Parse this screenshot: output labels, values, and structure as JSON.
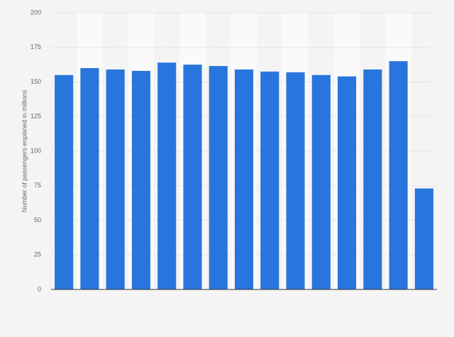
{
  "chart_data": {
    "type": "bar",
    "y_label": "Number of passengers enplaned in millions",
    "categories": [
      null,
      null,
      null,
      null,
      null,
      null,
      null,
      null,
      null,
      null,
      null,
      null,
      null,
      null,
      null
    ],
    "values": [
      155,
      160,
      159,
      158,
      164,
      162.5,
      161.5,
      159,
      157.5,
      157,
      155,
      154,
      159,
      165,
      73
    ],
    "color": "#2876dd",
    "ylim": [
      0,
      200
    ],
    "yticks": [
      0,
      25,
      50,
      75,
      100,
      125,
      150,
      175,
      200
    ],
    "grid": true
  }
}
